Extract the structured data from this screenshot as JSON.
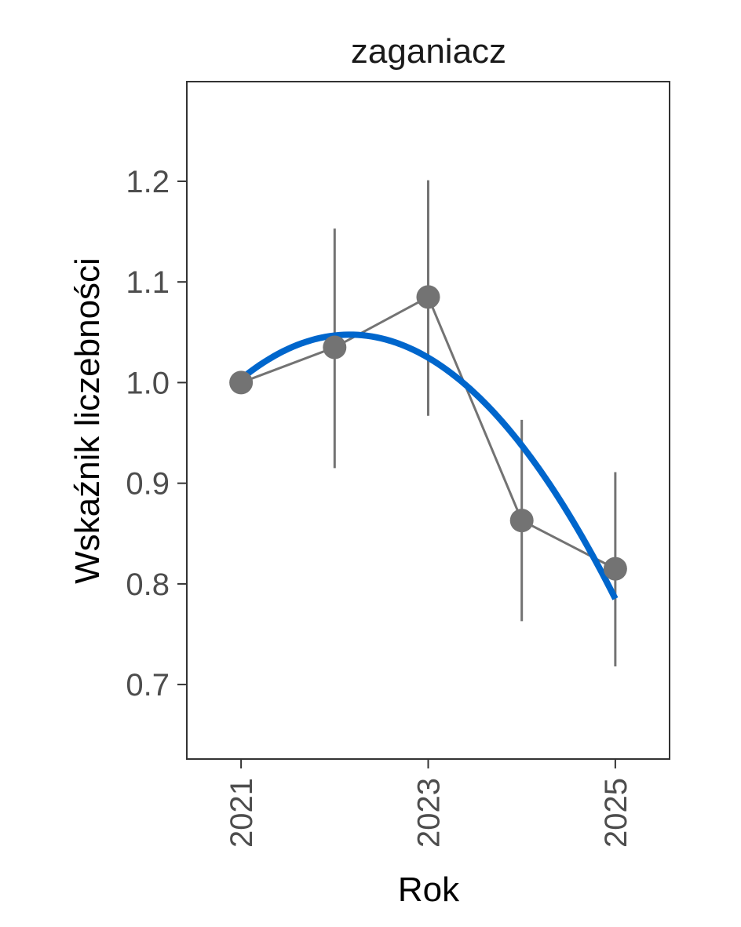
{
  "chart_data": {
    "type": "line",
    "title": "zaganiacz",
    "xlabel": "Rok",
    "ylabel": "Wskaźnik liczebności",
    "xlim": [
      2020.42,
      2025.58
    ],
    "ylim": [
      0.626,
      1.299
    ],
    "x_ticks": [
      2021,
      2023,
      2025
    ],
    "x_tick_labels": [
      "2021",
      "2023",
      "2025"
    ],
    "y_ticks": [
      0.7,
      0.8,
      0.9,
      1.0,
      1.1,
      1.2
    ],
    "y_tick_labels": [
      "0.7",
      "0.8",
      "0.9",
      "1.0",
      "1.1",
      "1.2"
    ],
    "grid": false,
    "series": [
      {
        "kind": "points_with_error_bars",
        "x": [
          2021,
          2022,
          2023,
          2024,
          2025
        ],
        "values": [
          1.0,
          1.035,
          1.085,
          0.863,
          0.815
        ],
        "lower": [
          1.0,
          0.915,
          0.967,
          0.763,
          0.718
        ],
        "upper": [
          1.0,
          1.153,
          1.201,
          0.963,
          0.911
        ]
      },
      {
        "kind": "trend",
        "x": [
          2021,
          2022,
          2023,
          2024,
          2025
        ],
        "values": [
          1.0,
          1.053,
          1.028,
          0.927,
          0.79
        ]
      }
    ],
    "colors": {
      "points": "#737373",
      "trend": "#0066cc",
      "frame": "#333333",
      "tick_text": "#4d4d4d"
    }
  }
}
